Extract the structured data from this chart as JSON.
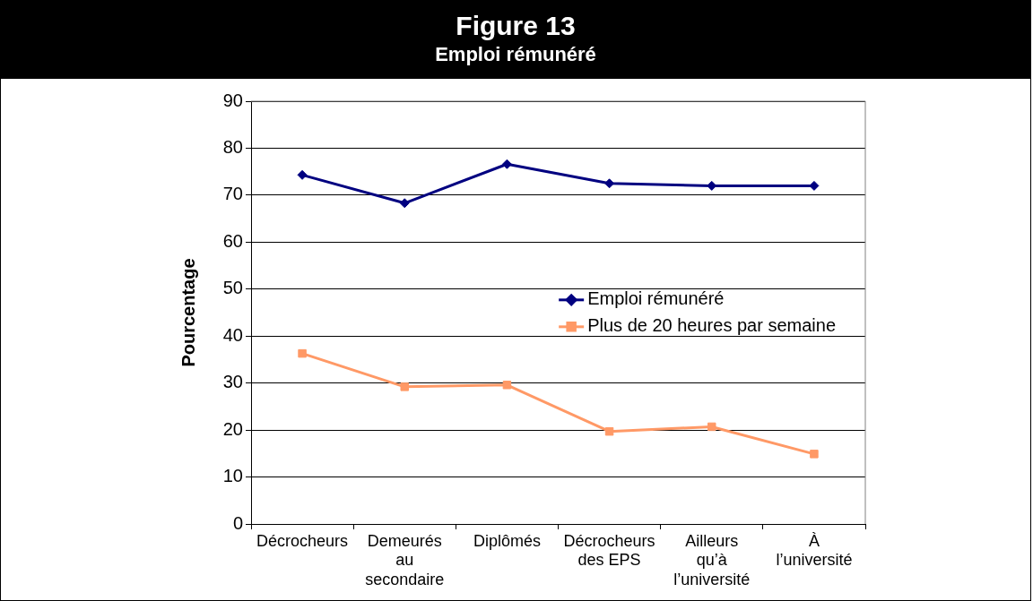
{
  "chart_data": {
    "type": "line",
    "title": "Figure 13",
    "subtitle": "Emploi rémunéré",
    "ylabel": "Pourcentage",
    "categories": [
      "Décrocheurs",
      "Demeurés au secondaire",
      "Diplômés",
      "Décrocheurs des EPS",
      "Ailleurs qu’à l’université",
      "À l’université"
    ],
    "series": [
      {
        "name": "Emploi rémunéré",
        "color": "#000080",
        "marker": "diamond",
        "values": [
          74.3,
          68.3,
          76.6,
          72.5,
          72.0,
          72.0
        ]
      },
      {
        "name": "Plus de 20 heures par semaine",
        "color": "#ff9966",
        "marker": "square",
        "values": [
          36.3,
          29.2,
          29.6,
          19.7,
          20.7,
          14.9
        ]
      }
    ],
    "ylim": [
      0,
      90
    ],
    "yticks": [
      0,
      10,
      20,
      30,
      40,
      50,
      60,
      70,
      80,
      90
    ],
    "grid": "y",
    "legend": "right"
  }
}
